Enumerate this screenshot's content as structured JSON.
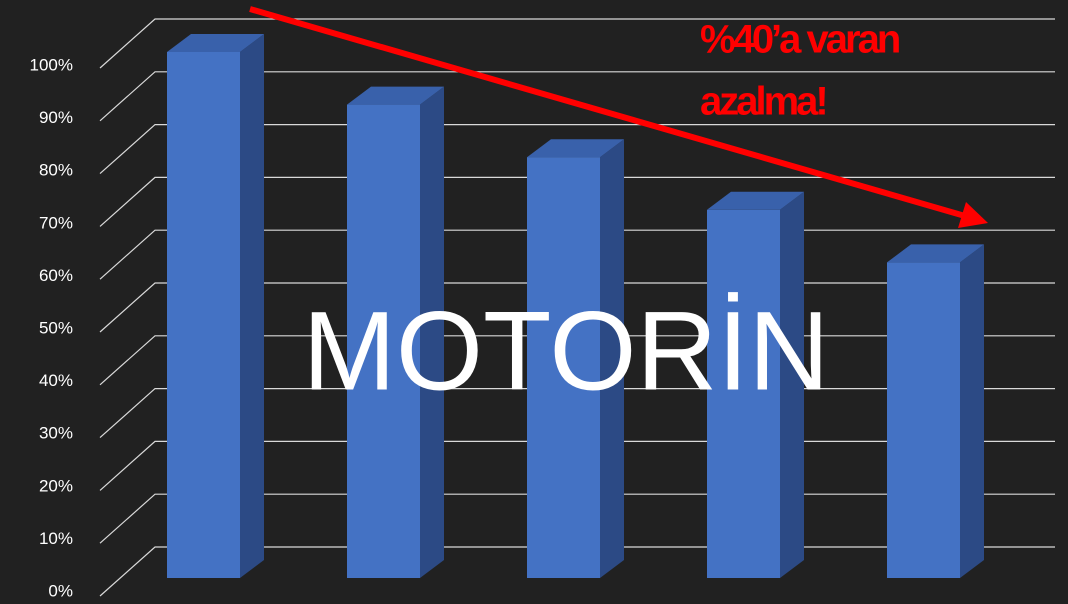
{
  "chart_data": {
    "type": "bar3d",
    "categories": [
      null,
      null,
      null,
      null,
      null
    ],
    "values": [
      100,
      90,
      80,
      70,
      60
    ],
    "color": "#4472c4",
    "ylim": [
      0,
      100
    ],
    "yticks": [
      {
        "value": 0,
        "label": "0%"
      },
      {
        "value": 10,
        "label": "10%"
      },
      {
        "value": 20,
        "label": "20%"
      },
      {
        "value": 30,
        "label": "30%"
      },
      {
        "value": 40,
        "label": "40%"
      },
      {
        "value": 50,
        "label": "50%"
      },
      {
        "value": 60,
        "label": "60%"
      },
      {
        "value": 70,
        "label": "70%"
      },
      {
        "value": 80,
        "label": "80%"
      },
      {
        "value": 90,
        "label": "90%"
      },
      {
        "value": 100,
        "label": "100%"
      }
    ],
    "grid": true,
    "annotation": [
      "%40’a varan",
      "azalma!"
    ],
    "overlay_text": "MOTORİN"
  }
}
